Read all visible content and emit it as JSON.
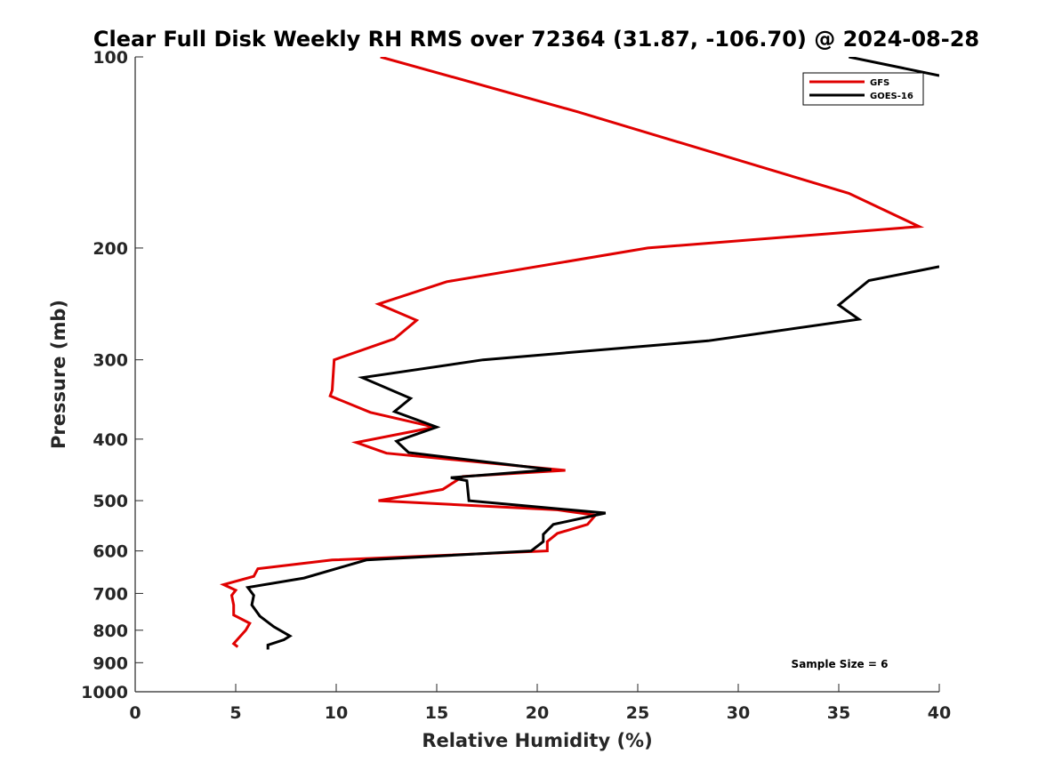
{
  "chart_data": {
    "type": "line",
    "title": "Clear Full Disk Weekly RH RMS over 72364 (31.87, -106.70) @ 2024-08-28",
    "xlabel": "Relative Humidity (%)",
    "ylabel": "Pressure (mb)",
    "xlim": [
      0,
      40
    ],
    "ylim": [
      1000,
      100
    ],
    "y_scale": "log",
    "x_ticks": [
      0,
      5,
      10,
      15,
      20,
      25,
      30,
      35,
      40
    ],
    "y_ticks": [
      100,
      200,
      300,
      400,
      500,
      600,
      700,
      800,
      900,
      1000
    ],
    "grid": false,
    "legend_position": "top-right",
    "annotation": "Sample Size = 6",
    "series": [
      {
        "name": "GFS",
        "color": "#e00000",
        "points": [
          [
            12.2,
            100
          ],
          [
            22,
            122
          ],
          [
            35.5,
            164
          ],
          [
            39,
            185
          ],
          [
            25.5,
            200
          ],
          [
            15.5,
            226
          ],
          [
            12.1,
            245
          ],
          [
            14,
            260
          ],
          [
            12.9,
            278
          ],
          [
            9.9,
            300
          ],
          [
            9.8,
            335
          ],
          [
            9.7,
            342
          ],
          [
            11.7,
            363
          ],
          [
            14.9,
            383
          ],
          [
            11,
            405
          ],
          [
            12.5,
            421
          ],
          [
            21.4,
            448
          ],
          [
            16.3,
            458
          ],
          [
            15.3,
            480
          ],
          [
            12.1,
            500
          ],
          [
            21,
            517
          ],
          [
            22.9,
            527
          ],
          [
            22.5,
            545
          ],
          [
            21,
            563
          ],
          [
            20.5,
            580
          ],
          [
            20.5,
            600
          ],
          [
            9.8,
            620
          ],
          [
            6.1,
            640
          ],
          [
            5.9,
            658
          ],
          [
            4.4,
            678
          ],
          [
            5,
            692
          ],
          [
            4.8,
            705
          ],
          [
            4.9,
            730
          ],
          [
            4.9,
            757
          ],
          [
            5.7,
            780
          ],
          [
            5.5,
            800
          ],
          [
            4.9,
            840
          ],
          [
            5.1,
            850
          ]
        ]
      },
      {
        "name": "GOES-16",
        "color": "#000000",
        "points": [
          [
            35.5,
            100
          ],
          [
            40,
            107
          ],
          null,
          [
            40,
            214
          ],
          [
            36.5,
            225
          ],
          [
            35,
            246
          ],
          [
            36,
            259
          ],
          [
            28.5,
            280
          ],
          [
            17.3,
            300
          ],
          [
            11.3,
            320
          ],
          [
            13.7,
            345
          ],
          [
            12.9,
            362
          ],
          [
            15,
            383
          ],
          [
            13,
            403
          ],
          [
            13.6,
            420
          ],
          [
            20.7,
            447
          ],
          [
            15.7,
            460
          ],
          [
            16.5,
            465
          ],
          [
            16.6,
            500
          ],
          [
            23.4,
            523
          ],
          [
            20.8,
            545
          ],
          [
            20.3,
            565
          ],
          [
            20.3,
            580
          ],
          [
            19.7,
            600
          ],
          [
            11.5,
            620
          ],
          [
            8.4,
            662
          ],
          [
            5.6,
            685
          ],
          [
            5.9,
            705
          ],
          [
            5.8,
            730
          ],
          [
            6.2,
            760
          ],
          [
            6.9,
            790
          ],
          [
            7.7,
            817
          ],
          [
            7.4,
            828
          ],
          [
            6.6,
            844
          ],
          [
            6.6,
            858
          ]
        ]
      }
    ]
  }
}
